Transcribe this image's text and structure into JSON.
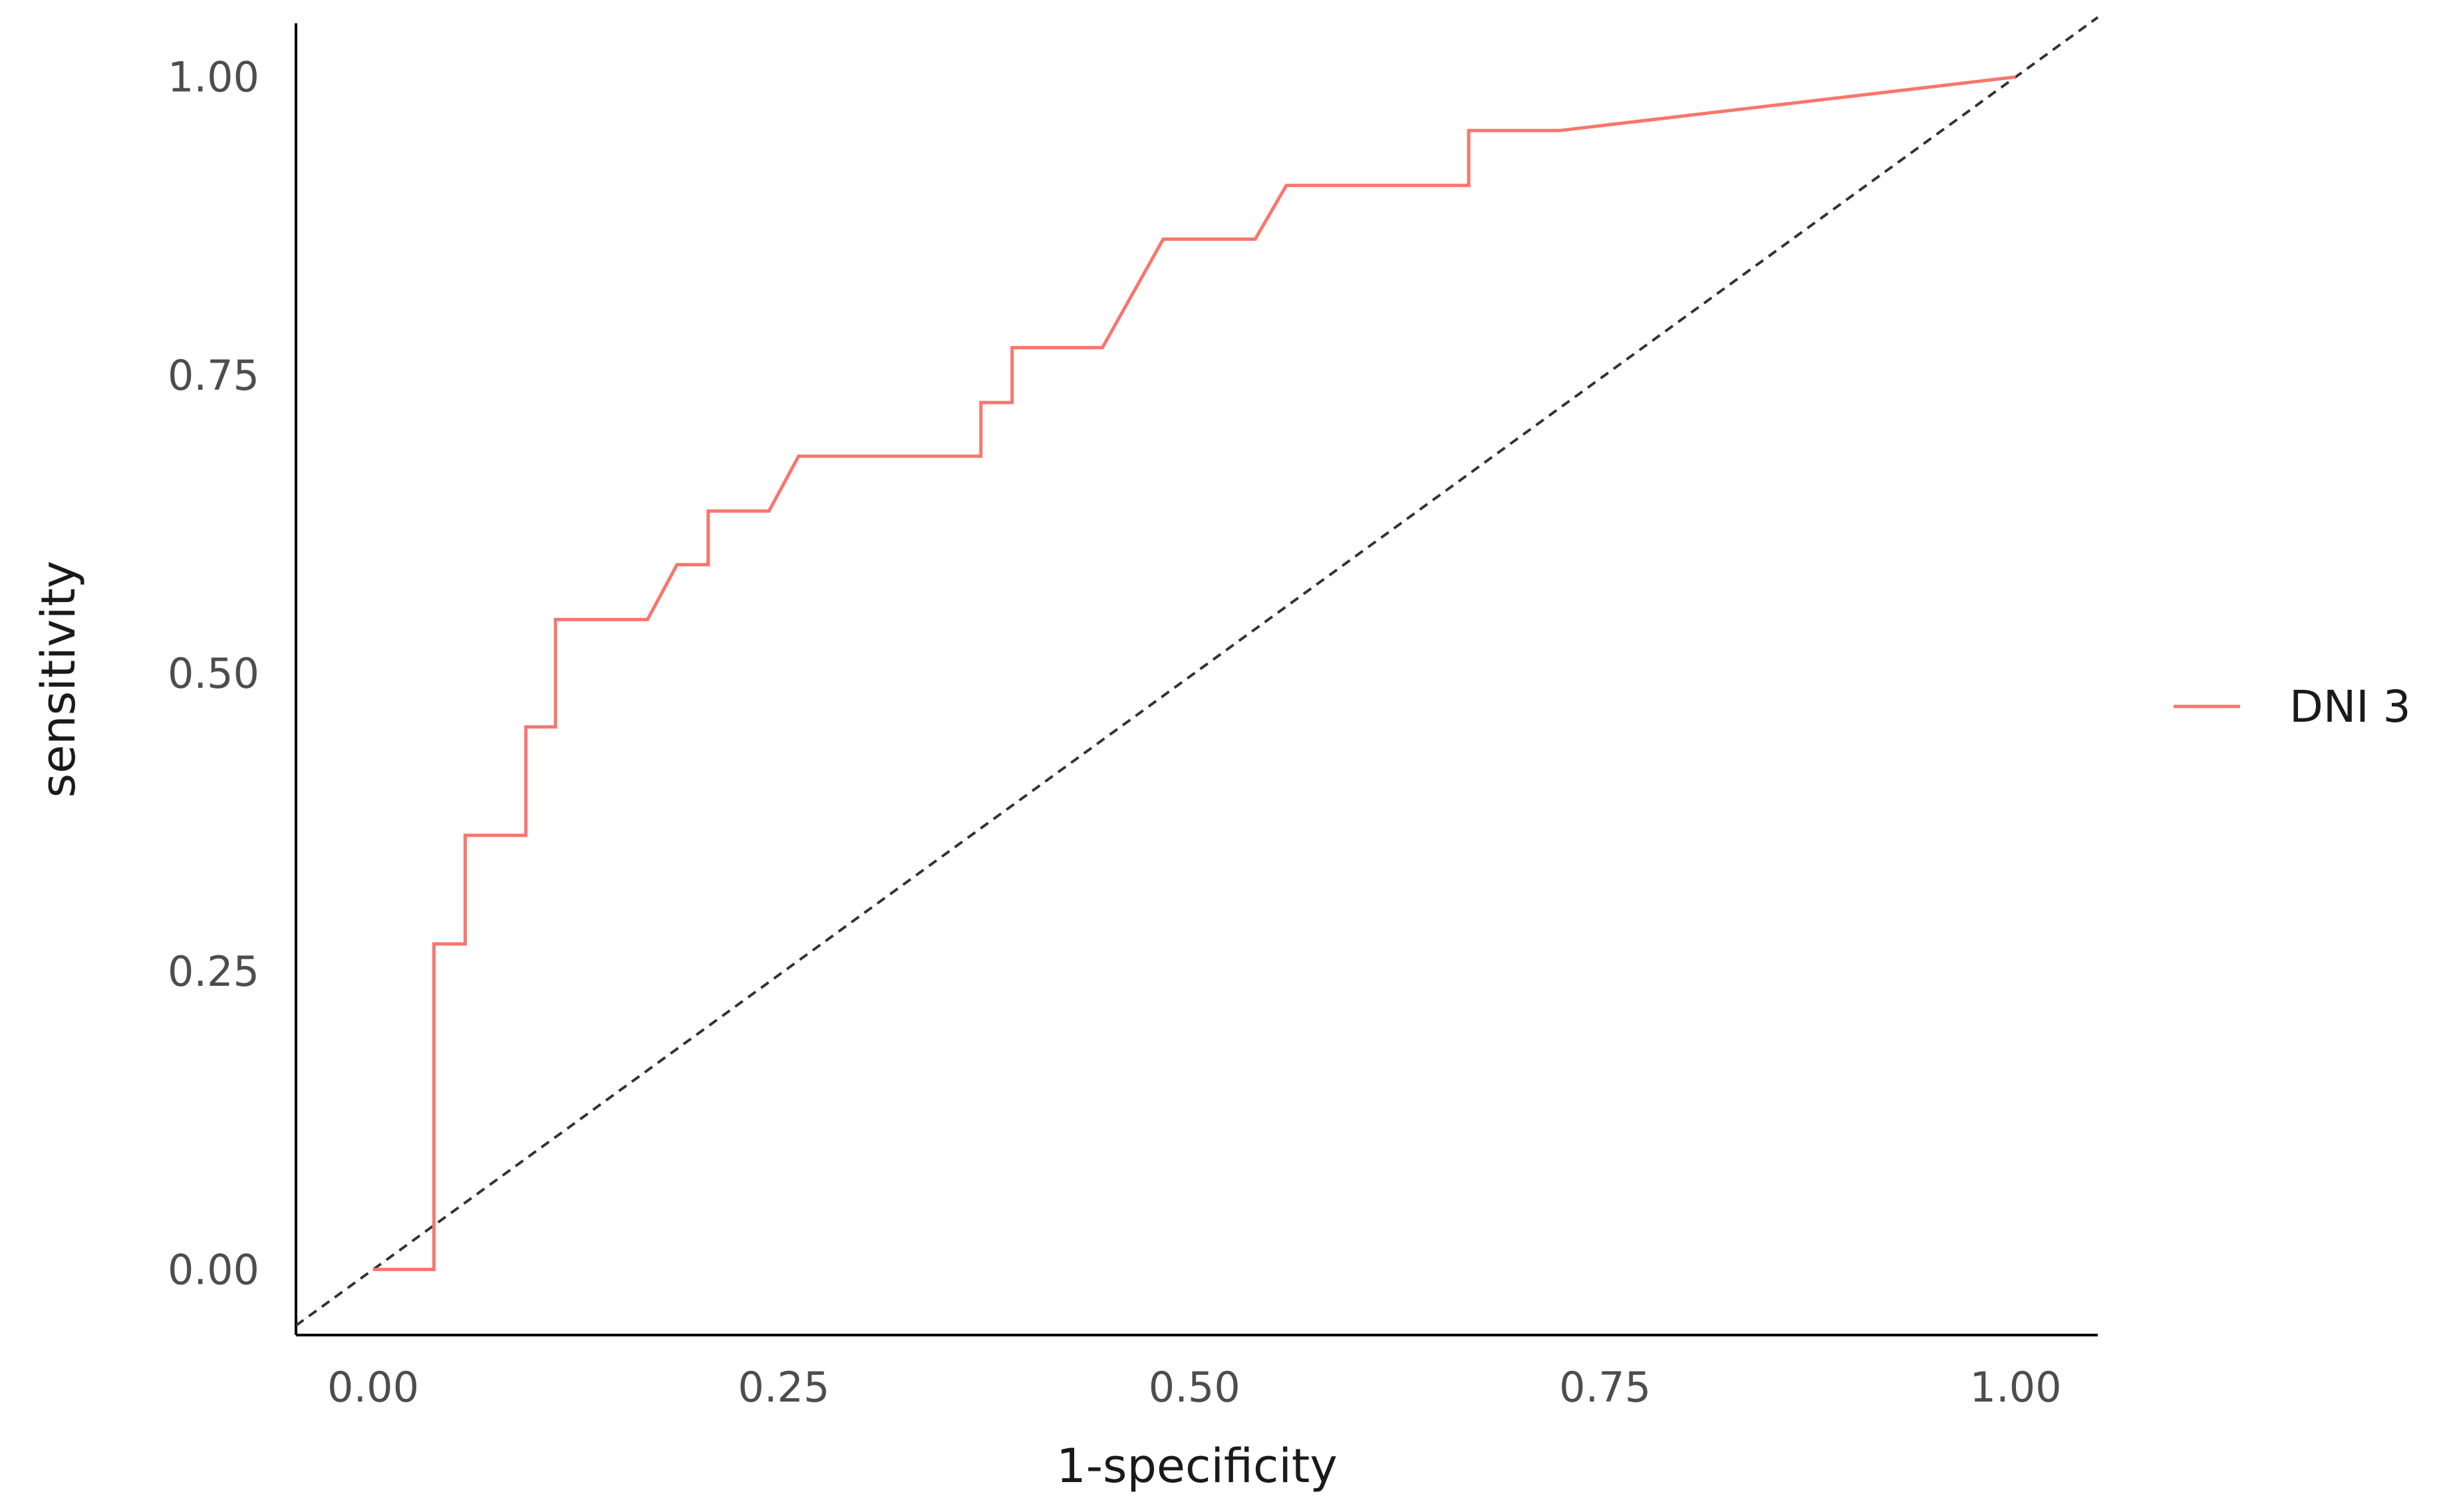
{
  "chart_data": {
    "type": "line",
    "title": "",
    "xlabel": "1-specificity",
    "ylabel": "sensitivity",
    "xlim": [
      -0.047,
      1.05
    ],
    "ylim": [
      -0.055,
      1.045
    ],
    "x_ticks": [
      0.0,
      0.25,
      0.5,
      0.75,
      1.0
    ],
    "x_tick_labels": [
      "0.00",
      "0.25",
      "0.50",
      "0.75",
      "1.00"
    ],
    "y_ticks": [
      0.0,
      0.25,
      0.5,
      0.75,
      1.0
    ],
    "y_tick_labels": [
      "0.00",
      "0.25",
      "0.50",
      "0.75",
      "1.00"
    ],
    "grid": false,
    "legend_position": "right",
    "series": [
      {
        "name": "DNI 3",
        "color": "#F8766D",
        "points": [
          [
            0.0,
            0.0
          ],
          [
            0.037,
            0.0
          ],
          [
            0.037,
            0.273
          ],
          [
            0.056,
            0.273
          ],
          [
            0.056,
            0.364
          ],
          [
            0.093,
            0.364
          ],
          [
            0.093,
            0.455
          ],
          [
            0.111,
            0.455
          ],
          [
            0.111,
            0.545
          ],
          [
            0.167,
            0.545
          ],
          [
            0.185,
            0.591
          ],
          [
            0.204,
            0.591
          ],
          [
            0.204,
            0.636
          ],
          [
            0.241,
            0.636
          ],
          [
            0.259,
            0.682
          ],
          [
            0.37,
            0.682
          ],
          [
            0.37,
            0.727
          ],
          [
            0.389,
            0.727
          ],
          [
            0.389,
            0.773
          ],
          [
            0.444,
            0.773
          ],
          [
            0.481,
            0.864
          ],
          [
            0.537,
            0.864
          ],
          [
            0.556,
            0.909
          ],
          [
            0.667,
            0.909
          ],
          [
            0.667,
            0.955
          ],
          [
            0.722,
            0.955
          ],
          [
            1.0,
            1.0
          ]
        ]
      }
    ],
    "reference_line": {
      "style": "dashed",
      "color": "#333333",
      "from": [
        -0.047,
        -0.047
      ],
      "to": [
        1.05,
        1.05
      ]
    }
  }
}
